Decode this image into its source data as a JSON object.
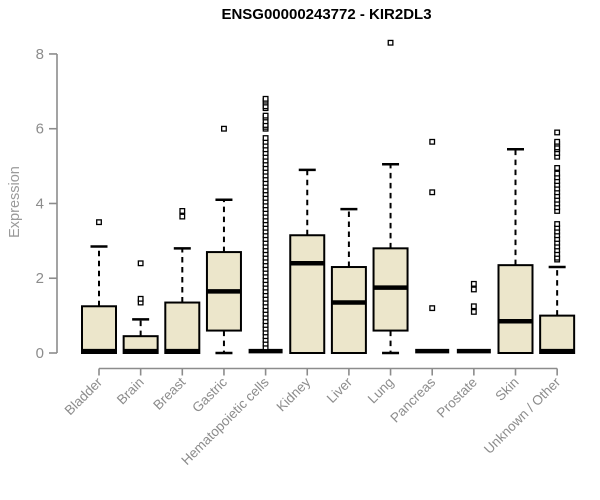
{
  "chart_data": {
    "type": "boxplot",
    "title": "ENSG00000243772 - KIR2DL3",
    "xlabel": "",
    "ylabel": "Expression",
    "ylim": [
      0,
      8
    ],
    "yticks": [
      0,
      2,
      4,
      6,
      8
    ],
    "grid": false,
    "legend": "none",
    "colors": {
      "box_fill": "#ECE6CB",
      "box_stroke": "#000000",
      "median": "#000000",
      "whisker": "#000000",
      "outlier_fill": "#FFFFFF",
      "outlier_stroke": "#000000",
      "axis": "#8C8C8C",
      "tick_label": "#8C8C8C",
      "title": "#000000"
    },
    "boxes": [
      {
        "name": "Bladder",
        "whisker_low": 0,
        "q1": 0,
        "median": 0.05,
        "q3": 1.25,
        "whisker_high": 2.85,
        "outliers": [
          3.5
        ]
      },
      {
        "name": "Brain",
        "whisker_low": 0,
        "q1": 0,
        "median": 0.05,
        "q3": 0.45,
        "whisker_high": 0.9,
        "outliers": [
          1.35,
          1.45,
          2.4
        ]
      },
      {
        "name": "Breast",
        "whisker_low": 0,
        "q1": 0,
        "median": 0.05,
        "q3": 1.35,
        "whisker_high": 2.8,
        "outliers": [
          3.65,
          3.8
        ]
      },
      {
        "name": "Gastric",
        "whisker_low": 0,
        "q1": 0.6,
        "median": 1.65,
        "q3": 2.7,
        "whisker_high": 4.1,
        "outliers": [
          6.0
        ]
      },
      {
        "name": "Hematopoietic cells",
        "whisker_low": 0,
        "q1": 0,
        "median": 0.05,
        "q3": 0,
        "whisker_high": 0,
        "outliers": [
          0.15,
          0.25,
          0.35,
          0.45,
          0.55,
          0.65,
          0.75,
          0.85,
          0.95,
          1.05,
          1.15,
          1.25,
          1.35,
          1.45,
          1.55,
          1.65,
          1.75,
          1.85,
          1.95,
          2.05,
          2.15,
          2.25,
          2.35,
          2.45,
          2.55,
          2.65,
          2.75,
          2.85,
          2.95,
          3.05,
          3.15,
          3.25,
          3.35,
          3.45,
          3.55,
          3.65,
          3.75,
          3.85,
          3.95,
          4.05,
          4.15,
          4.25,
          4.35,
          4.45,
          4.55,
          4.65,
          4.75,
          4.85,
          4.95,
          5.05,
          5.15,
          5.25,
          5.35,
          5.45,
          5.55,
          5.65,
          5.75,
          6.0,
          6.05,
          6.1,
          6.2,
          6.3,
          6.35,
          6.55,
          6.6,
          6.7,
          6.75,
          6.8
        ]
      },
      {
        "name": "Kidney",
        "whisker_low": 0,
        "q1": 0,
        "median": 2.4,
        "q3": 3.15,
        "whisker_high": 4.9,
        "outliers": []
      },
      {
        "name": "Liver",
        "whisker_low": 0,
        "q1": 0,
        "median": 1.35,
        "q3": 2.3,
        "whisker_high": 3.85,
        "outliers": []
      },
      {
        "name": "Lung",
        "whisker_low": 0,
        "q1": 0.6,
        "median": 1.75,
        "q3": 2.8,
        "whisker_high": 5.05,
        "outliers": [
          8.3
        ]
      },
      {
        "name": "Pancreas",
        "whisker_low": 0,
        "q1": 0,
        "median": 0.05,
        "q3": 0,
        "whisker_high": 0,
        "outliers": [
          1.2,
          4.3,
          5.65
        ]
      },
      {
        "name": "Prostate",
        "whisker_low": 0,
        "q1": 0,
        "median": 0.05,
        "q3": 0,
        "whisker_high": 0,
        "outliers": [
          1.1,
          1.25,
          1.7,
          1.85
        ]
      },
      {
        "name": "Skin",
        "whisker_low": 0,
        "q1": 0,
        "median": 0.85,
        "q3": 2.35,
        "whisker_high": 5.45,
        "outliers": []
      },
      {
        "name": "Unknown / Other",
        "whisker_low": 0,
        "q1": 0,
        "median": 0.05,
        "q3": 1.0,
        "whisker_high": 2.3,
        "outliers": [
          2.5,
          2.55,
          2.65,
          2.75,
          2.85,
          2.95,
          3.05,
          3.15,
          3.25,
          3.35,
          3.45,
          3.8,
          3.9,
          4.0,
          4.1,
          4.2,
          4.3,
          4.4,
          4.5,
          4.6,
          4.7,
          4.8,
          4.95,
          5.25,
          5.35,
          5.45,
          5.5,
          5.6,
          5.65,
          5.9
        ]
      }
    ]
  }
}
